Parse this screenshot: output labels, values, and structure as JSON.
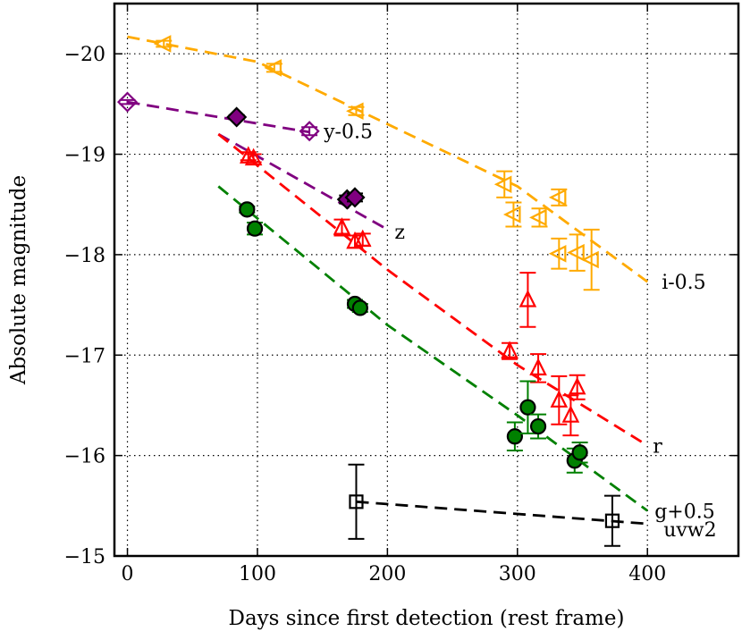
{
  "chart_data": {
    "type": "scatter",
    "title": "",
    "xlabel": "Days since first detection (rest frame)",
    "ylabel": "Absolute magnitude",
    "xlim": [
      -10,
      470
    ],
    "ylim": [
      -15,
      -20.5
    ],
    "y_inverted": true,
    "grid": true,
    "legend": "none",
    "x_ticks": [
      0,
      100,
      200,
      300,
      400
    ],
    "x_tick_labels": [
      "0",
      "100",
      "200",
      "300",
      "400"
    ],
    "y_ticks": [
      -20,
      -19,
      -18,
      -17,
      -16,
      -15
    ],
    "y_tick_labels": [
      "−20",
      "−19",
      "−18",
      "−17",
      "−16",
      "−15"
    ],
    "series": [
      {
        "name": "i-0.5",
        "color": "#ffaa00",
        "marker": "triangle-left-open",
        "points": [
          {
            "x": 28,
            "y": -20.1,
            "err": 0.03
          },
          {
            "x": 113,
            "y": -19.86,
            "err": 0.04
          },
          {
            "x": 176,
            "y": -19.43,
            "err": 0.04
          },
          {
            "x": 290,
            "y": -18.7,
            "err": 0.13
          },
          {
            "x": 297,
            "y": -18.4,
            "err": 0.12
          },
          {
            "x": 317,
            "y": -18.37,
            "err": 0.09
          },
          {
            "x": 332,
            "y": -18.57,
            "err": 0.08
          },
          {
            "x": 332,
            "y": -18.01,
            "err": 0.15
          },
          {
            "x": 346,
            "y": -18.02,
            "err": 0.18
          },
          {
            "x": 357,
            "y": -17.95,
            "err": 0.3
          }
        ],
        "fit": [
          [
            0,
            -20.17
          ],
          [
            100,
            -19.92
          ],
          [
            200,
            -19.3
          ],
          [
            300,
            -18.68
          ],
          [
            400,
            -17.73
          ]
        ]
      },
      {
        "name": "y-0.5",
        "color": "#800080",
        "marker": "diamond-open",
        "points": [
          {
            "x": 0,
            "y": -19.52,
            "err": 0.02
          },
          {
            "x": 140,
            "y": -19.23,
            "err": 0.04
          }
        ],
        "fit": [
          [
            0,
            -19.52
          ],
          [
            140,
            -19.22
          ]
        ]
      },
      {
        "name": "z",
        "color": "#800080",
        "marker": "diamond-filled",
        "points": [
          {
            "x": 84,
            "y": -19.37,
            "err": 0.02
          },
          {
            "x": 169,
            "y": -18.55,
            "err": 0.04
          },
          {
            "x": 175,
            "y": -18.57,
            "err": 0.04
          }
        ],
        "fit": [
          [
            70,
            -19.2
          ],
          [
            200,
            -18.25
          ]
        ]
      },
      {
        "name": "r",
        "color": "#ff0000",
        "marker": "triangle-up-open",
        "points": [
          {
            "x": 93,
            "y": -18.98,
            "err": 0.04
          },
          {
            "x": 97,
            "y": -18.96,
            "err": 0.04
          },
          {
            "x": 165,
            "y": -18.27,
            "err": 0.08
          },
          {
            "x": 175,
            "y": -18.13,
            "err": 0.06
          },
          {
            "x": 181,
            "y": -18.15,
            "err": 0.06
          },
          {
            "x": 294,
            "y": -17.04,
            "err": 0.08
          },
          {
            "x": 308,
            "y": -17.55,
            "err": 0.27
          },
          {
            "x": 316,
            "y": -16.87,
            "err": 0.14
          },
          {
            "x": 332,
            "y": -16.55,
            "err": 0.24
          },
          {
            "x": 341,
            "y": -16.4,
            "err": 0.2
          },
          {
            "x": 346,
            "y": -16.68,
            "err": 0.12
          }
        ],
        "fit": [
          [
            70,
            -19.2
          ],
          [
            200,
            -17.85
          ],
          [
            300,
            -16.9
          ],
          [
            400,
            -16.1
          ]
        ]
      },
      {
        "name": "g+0.5",
        "color": "#008000",
        "marker": "circle-filled",
        "points": [
          {
            "x": 92,
            "y": -18.45,
            "err": 0.03
          },
          {
            "x": 98,
            "y": -18.26,
            "err": 0.06
          },
          {
            "x": 175,
            "y": -17.51,
            "err": 0.04
          },
          {
            "x": 179,
            "y": -17.47,
            "err": 0.04
          },
          {
            "x": 298,
            "y": -16.19,
            "err": 0.14
          },
          {
            "x": 308,
            "y": -16.48,
            "err": 0.26
          },
          {
            "x": 316,
            "y": -16.29,
            "err": 0.12
          },
          {
            "x": 344,
            "y": -15.95,
            "err": 0.12
          },
          {
            "x": 348,
            "y": -16.03,
            "err": 0.1
          }
        ],
        "fit": [
          [
            70,
            -18.68
          ],
          [
            200,
            -17.3
          ],
          [
            300,
            -16.4
          ],
          [
            400,
            -15.45
          ]
        ]
      },
      {
        "name": "uvw2",
        "color": "#000000",
        "marker": "square-open",
        "points": [
          {
            "x": 176,
            "y": -15.54,
            "err": 0.37
          },
          {
            "x": 373,
            "y": -15.35,
            "err": 0.25
          }
        ],
        "fit": [
          [
            176,
            -15.54
          ],
          [
            400,
            -15.32
          ]
        ]
      }
    ]
  }
}
